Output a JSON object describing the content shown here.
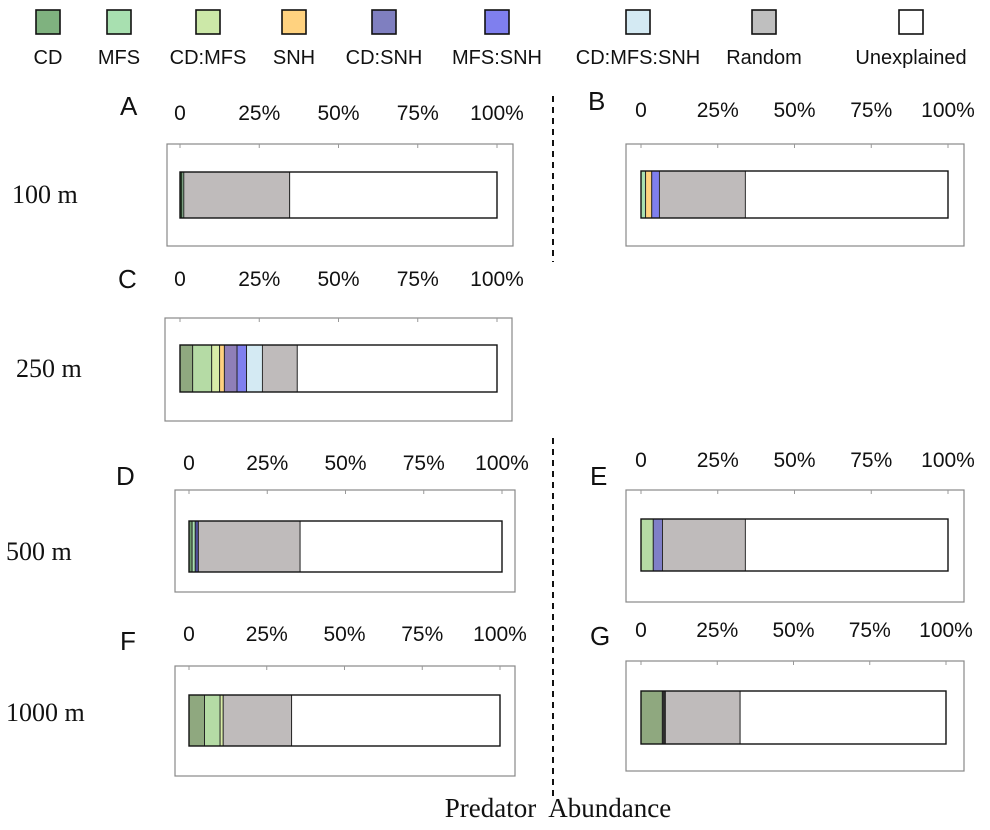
{
  "legend": [
    {
      "label": "CD",
      "color": "#7fb27f"
    },
    {
      "label": "MFS",
      "color": "#a8e0b0"
    },
    {
      "label": "CD:MFS",
      "color": "#cce8a8"
    },
    {
      "label": "SNH",
      "color": "#ffd27f"
    },
    {
      "label": "CD:SNH",
      "color": "#7f7fc0"
    },
    {
      "label": "MFS:SNH",
      "color": "#7f7fee"
    },
    {
      "label": "CD:MFS:SNH",
      "color": "#d4eaf3"
    },
    {
      "label": "Random",
      "color": "#bfbfbf"
    },
    {
      "label": "Unexplained",
      "color": "#ffffff"
    }
  ],
  "row_labels": [
    "100 m",
    "250 m",
    "500 m",
    "1000 m"
  ],
  "footer": "Predator  Abundance",
  "chart_data": [
    {
      "type": "bar",
      "panel": "A",
      "ticks": [
        "0",
        "25%",
        "50%",
        "75%",
        "100%"
      ],
      "xlim": [
        0,
        100
      ],
      "segments": [
        {
          "name": "CD",
          "value": 0.6,
          "color": "#2e5a2e"
        },
        {
          "name": "MFS",
          "value": 0.6,
          "color": "#a8e0b0"
        },
        {
          "name": "Random",
          "value": 33.4,
          "color": "#bfbbbb"
        },
        {
          "name": "Unexplained",
          "value": 65.4,
          "color": "#ffffff"
        }
      ]
    },
    {
      "type": "bar",
      "panel": "B",
      "ticks": [
        "0",
        "25%",
        "50%",
        "75%",
        "100%"
      ],
      "xlim": [
        0,
        100
      ],
      "segments": [
        {
          "name": "MFS",
          "value": 1.5,
          "color": "#a8e0b0"
        },
        {
          "name": "SNH",
          "value": 2.0,
          "color": "#ffd27f"
        },
        {
          "name": "MFS:SNH",
          "value": 2.5,
          "color": "#7f7fee"
        },
        {
          "name": "Random",
          "value": 28.0,
          "color": "#bfbbbb"
        },
        {
          "name": "Unexplained",
          "value": 66.0,
          "color": "#ffffff"
        }
      ]
    },
    {
      "type": "bar",
      "panel": "C",
      "ticks": [
        "0",
        "25%",
        "50%",
        "75%",
        "100%"
      ],
      "xlim": [
        0,
        100
      ],
      "segments": [
        {
          "name": "CD",
          "value": 4.0,
          "color": "#8fa87f"
        },
        {
          "name": "MFS",
          "value": 6.0,
          "color": "#b5dba5"
        },
        {
          "name": "CD:MFS",
          "value": 2.5,
          "color": "#d8eca8"
        },
        {
          "name": "SNH",
          "value": 1.5,
          "color": "#ffd27f"
        },
        {
          "name": "CD:SNH",
          "value": 4.0,
          "color": "#8f7fb8"
        },
        {
          "name": "MFS:SNH",
          "value": 3.0,
          "color": "#7f7fee"
        },
        {
          "name": "CD:MFS:SNH",
          "value": 5.0,
          "color": "#d4eaf3"
        },
        {
          "name": "Random",
          "value": 11.0,
          "color": "#bfbbbb"
        },
        {
          "name": "Unexplained",
          "value": 63.0,
          "color": "#ffffff"
        }
      ]
    },
    {
      "type": "bar",
      "panel": "D",
      "ticks": [
        "0",
        "25%",
        "50%",
        "75%",
        "100%"
      ],
      "xlim": [
        0,
        100
      ],
      "segments": [
        {
          "name": "CD",
          "value": 1.0,
          "color": "#6f9a6f"
        },
        {
          "name": "MFS",
          "value": 1.0,
          "color": "#a8e0b0"
        },
        {
          "name": "CD:SNH",
          "value": 1.0,
          "color": "#4f4f9a"
        },
        {
          "name": "Random",
          "value": 32.5,
          "color": "#bfbbbb"
        },
        {
          "name": "Unexplained",
          "value": 64.5,
          "color": "#ffffff"
        }
      ]
    },
    {
      "type": "bar",
      "panel": "E",
      "ticks": [
        "0",
        "25%",
        "50%",
        "75%",
        "100%"
      ],
      "xlim": [
        0,
        100
      ],
      "segments": [
        {
          "name": "MFS",
          "value": 4.0,
          "color": "#b5dba5"
        },
        {
          "name": "MFS:SNH",
          "value": 3.0,
          "color": "#7f7fc8"
        },
        {
          "name": "Random",
          "value": 27.0,
          "color": "#bfbbbb"
        },
        {
          "name": "Unexplained",
          "value": 66.0,
          "color": "#ffffff"
        }
      ]
    },
    {
      "type": "bar",
      "panel": "F",
      "ticks": [
        "0",
        "25%",
        "50%",
        "75%",
        "100%"
      ],
      "xlim": [
        0,
        100
      ],
      "segments": [
        {
          "name": "CD",
          "value": 5.0,
          "color": "#8fa87f"
        },
        {
          "name": "MFS",
          "value": 5.0,
          "color": "#b5dba5"
        },
        {
          "name": "CD:MFS",
          "value": 1.0,
          "color": "#d8eca8"
        },
        {
          "name": "Random",
          "value": 22.0,
          "color": "#bfbbbb"
        },
        {
          "name": "Unexplained",
          "value": 67.0,
          "color": "#ffffff"
        }
      ]
    },
    {
      "type": "bar",
      "panel": "G",
      "ticks": [
        "0",
        "25%",
        "50%",
        "75%",
        "100%"
      ],
      "xlim": [
        0,
        100
      ],
      "segments": [
        {
          "name": "CD",
          "value": 7.0,
          "color": "#8fa87f"
        },
        {
          "name": "CD:SNH",
          "value": 1.0,
          "color": "#2e2e2e"
        },
        {
          "name": "Random",
          "value": 24.5,
          "color": "#bfbbbb"
        },
        {
          "name": "Unexplained",
          "value": 67.5,
          "color": "#ffffff"
        }
      ]
    }
  ]
}
